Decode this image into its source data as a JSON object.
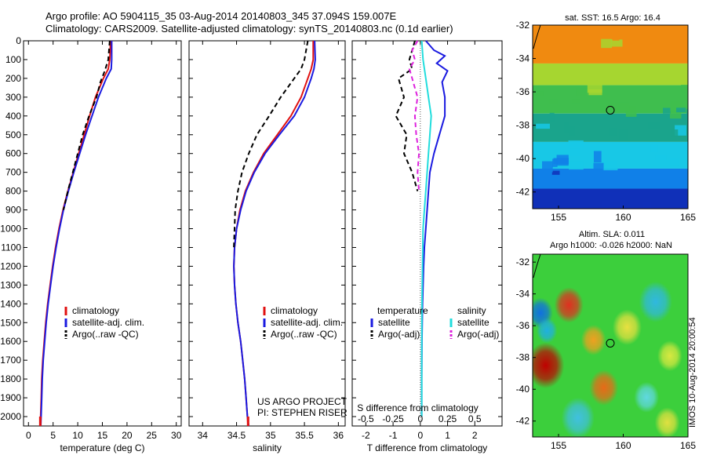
{
  "header": {
    "line1": "Argo profile: AO 5904115_35 03-Aug-2014 20140803_345 37.094S 159.007E",
    "line2": "Climatology: CARS2009. Satellite-adjusted climatology: synTS_20140803.nc (0.1d earlier)"
  },
  "stamp": "IMOS 10-Aug-2014 20:00:54",
  "colors": {
    "climatology": "#e01010",
    "satellite": "#1a1ae0",
    "argo": "#000000",
    "salinity_satellite": "#22dddd",
    "salinity_argo": "#dd22dd"
  },
  "chart_data": [
    {
      "type": "line",
      "id": "temperature",
      "xlabel": "temperature (deg C)",
      "ylabel": "",
      "xlim": [
        -1,
        31
      ],
      "ylim": [
        2050,
        0
      ],
      "xticks": [
        0,
        5,
        10,
        15,
        20,
        25,
        30
      ],
      "yticks": [
        0,
        100,
        200,
        300,
        400,
        500,
        600,
        700,
        800,
        900,
        1000,
        1100,
        1200,
        1300,
        1400,
        1500,
        1600,
        1700,
        1800,
        1900,
        2000
      ],
      "legend": {
        "placement": "lower-middle",
        "entries": [
          "climatology",
          "satellite-adj. clim.",
          "Argo(..raw -QC)"
        ]
      },
      "series": [
        {
          "name": "climatology",
          "style": "solid",
          "color_key": "climatology",
          "x": [
            16.6,
            16.6,
            16.5,
            16.2,
            15.2,
            13.6,
            12.4,
            11.3,
            10.2,
            9.1,
            8.0,
            7.0,
            6.2,
            5.5,
            4.9,
            4.4,
            3.9,
            3.5,
            3.2,
            2.9,
            2.7,
            2.6,
            2.4
          ],
          "y": [
            0,
            50,
            100,
            150,
            200,
            300,
            400,
            500,
            600,
            700,
            800,
            900,
            1000,
            1100,
            1200,
            1300,
            1400,
            1500,
            1600,
            1700,
            1800,
            1900,
            2050
          ]
        },
        {
          "name": "satellite-adj. clim.",
          "style": "solid",
          "color_key": "satellite",
          "x": [
            16.9,
            16.9,
            16.9,
            16.8,
            15.8,
            14.2,
            12.9,
            11.6,
            10.4,
            9.2,
            8.1,
            7.1,
            6.3,
            5.6,
            5.0,
            4.5,
            4.0,
            3.6,
            3.3,
            3.0,
            2.8,
            2.7,
            2.5
          ],
          "y": [
            0,
            50,
            100,
            150,
            200,
            300,
            400,
            500,
            600,
            700,
            800,
            900,
            1000,
            1100,
            1200,
            1300,
            1400,
            1500,
            1600,
            1700,
            1800,
            1900,
            2050
          ]
        },
        {
          "name": "Argo(..raw -QC)",
          "style": "dash",
          "color_key": "argo",
          "x": [
            16.5,
            16.2,
            15.5,
            14.6,
            13.8,
            12.3,
            11.0,
            10.0,
            9.0,
            8.0,
            7.1
          ],
          "y": [
            0,
            100,
            160,
            220,
            300,
            400,
            500,
            600,
            700,
            800,
            900
          ]
        }
      ]
    },
    {
      "type": "line",
      "id": "salinity",
      "xlabel": "salinity",
      "ylabel": "",
      "xlim": [
        33.8,
        36.1
      ],
      "ylim": [
        2050,
        0
      ],
      "xticks": [
        34,
        34.5,
        35,
        35.5,
        36
      ],
      "legend": {
        "placement": "lower-middle",
        "entries": [
          "climatology",
          "satellite-adj. clim.",
          "Argo(..raw -QC)"
        ]
      },
      "annotation": [
        "US ARGO PROJECT",
        "PI: STEPHEN RISER"
      ],
      "series": [
        {
          "name": "climatology",
          "style": "solid",
          "color_key": "climatology",
          "x": [
            35.63,
            35.63,
            35.6,
            35.55,
            35.45,
            35.3,
            35.1,
            34.9,
            34.75,
            34.63,
            34.55,
            34.5,
            34.47,
            34.46,
            34.47,
            34.49,
            34.52,
            34.56,
            34.59,
            34.62,
            34.64,
            34.66,
            34.67
          ],
          "y": [
            0,
            100,
            150,
            200,
            300,
            400,
            500,
            600,
            700,
            800,
            900,
            1000,
            1100,
            1200,
            1300,
            1400,
            1500,
            1600,
            1700,
            1800,
            1900,
            2000,
            2050
          ]
        },
        {
          "name": "satellite-adj. clim.",
          "style": "solid",
          "color_key": "satellite",
          "x": [
            35.65,
            35.66,
            35.64,
            35.6,
            35.5,
            35.35,
            35.13,
            34.92,
            34.76,
            34.64,
            34.56,
            34.5,
            34.47,
            34.46,
            34.47,
            34.49,
            34.52,
            34.56,
            34.59,
            34.62,
            34.64,
            34.66,
            34.68
          ],
          "y": [
            0,
            100,
            150,
            200,
            300,
            400,
            500,
            600,
            700,
            800,
            900,
            1000,
            1100,
            1200,
            1300,
            1400,
            1500,
            1600,
            1700,
            1800,
            1900,
            2000,
            2050
          ]
        },
        {
          "name": "Argo(..raw -QC)",
          "style": "dash",
          "color_key": "argo",
          "x": [
            35.55,
            35.5,
            35.45,
            35.35,
            35.25,
            35.15,
            34.98,
            34.8,
            34.68,
            34.58,
            34.52,
            34.48,
            34.47,
            34.46
          ],
          "y": [
            0,
            100,
            150,
            200,
            250,
            300,
            400,
            500,
            600,
            700,
            800,
            900,
            1000,
            1100
          ]
        }
      ]
    },
    {
      "type": "line",
      "id": "difference",
      "xlabel": "T difference from climatology",
      "xlabel2": "S difference from climatology",
      "ylabel": "",
      "xlim": [
        -2.5,
        3
      ],
      "ylim": [
        2050,
        0
      ],
      "xticks": [
        -2,
        -1,
        0,
        1,
        2
      ],
      "xticks2_labels": [
        "-0.5",
        "-0.25",
        "0",
        "0.25",
        "0.5"
      ],
      "xticks2_pos": [
        -2,
        -1,
        0,
        1,
        2
      ],
      "legend": {
        "placement": "lower-middle",
        "temperature_title": "temperature",
        "temperature_entries": [
          "satellite",
          "Argo(-adj)"
        ],
        "salinity_title": "salinity",
        "salinity_entries": [
          "satellite",
          "Argo(-adj)"
        ]
      },
      "series": [
        {
          "name": "satellite",
          "group": "temperature",
          "style": "solid",
          "color_key": "satellite",
          "x": [
            0.2,
            0.5,
            0.9,
            0.6,
            1.0,
            0.8,
            0.9,
            0.9,
            0.7,
            0.5,
            0.35,
            0.3,
            0.25,
            0.2,
            0.15,
            0.12,
            0.1,
            0.08,
            0.06,
            0.05,
            0.05
          ],
          "y": [
            0,
            50,
            80,
            120,
            160,
            220,
            300,
            400,
            500,
            600,
            700,
            800,
            900,
            1000,
            1100,
            1200,
            1300,
            1400,
            1600,
            1800,
            2000
          ]
        },
        {
          "name": "Argo(-adj)",
          "group": "temperature",
          "style": "dash",
          "color_key": "argo",
          "x": [
            -0.2,
            -0.4,
            -0.3,
            -0.8,
            -0.6,
            -0.9,
            -0.5,
            -0.6,
            -0.3,
            -0.1
          ],
          "y": [
            0,
            100,
            150,
            200,
            300,
            400,
            500,
            600,
            700,
            800
          ]
        },
        {
          "name": "satellite",
          "group": "salinity",
          "style": "solid",
          "color_key": "salinity_satellite",
          "x": [
            0.05,
            0.1,
            0.2,
            0.3,
            0.4,
            0.35,
            0.3,
            0.25,
            0.2,
            0.15,
            0.1,
            0.08,
            0.06,
            0.05,
            0.05
          ],
          "y": [
            0,
            100,
            200,
            300,
            400,
            500,
            600,
            700,
            800,
            900,
            1000,
            1200,
            1400,
            1700,
            2000
          ]
        },
        {
          "name": "Argo(-adj)",
          "group": "salinity",
          "style": "dash",
          "color_key": "salinity_argo",
          "x": [
            -0.1,
            -0.3,
            -0.2,
            -0.4,
            -0.3,
            -0.1,
            -0.2,
            -0.15,
            -0.05,
            -0.1,
            -0.05
          ],
          "y": [
            0,
            50,
            100,
            150,
            200,
            300,
            400,
            500,
            600,
            700,
            800
          ]
        }
      ]
    },
    {
      "type": "heatmap",
      "id": "sst_map",
      "title": "sat. SST: 16.5 Argo: 16.4",
      "xlim": [
        153,
        165
      ],
      "ylim": [
        -43,
        -32
      ],
      "xticks": [
        155,
        160,
        165
      ],
      "yticks": [
        -32,
        -34,
        -36,
        -38,
        -40,
        -42
      ],
      "marker": {
        "lon": 159.0,
        "lat": -37.1
      },
      "bands": [
        {
          "lat_top": -32,
          "lat_bottom": -34.3,
          "color": "#f08a10"
        },
        {
          "lat_top": -34.3,
          "lat_bottom": -35.6,
          "color": "#a6d630"
        },
        {
          "lat_top": -35.6,
          "lat_bottom": -37.3,
          "color": "#3fbe4e"
        },
        {
          "lat_top": -37.3,
          "lat_bottom": -39.0,
          "color": "#1aa48c"
        },
        {
          "lat_top": -39.0,
          "lat_bottom": -40.6,
          "color": "#18c8e6"
        },
        {
          "lat_top": -40.6,
          "lat_bottom": -41.8,
          "color": "#1080e8"
        },
        {
          "lat_top": -41.8,
          "lat_bottom": -43,
          "color": "#1030b8"
        }
      ]
    },
    {
      "type": "heatmap",
      "id": "sla_map",
      "title": "Altim. SLA: 0.011",
      "subtitle": "Argo h1000: -0.026 h2000: NaN",
      "xlim": [
        153,
        165
      ],
      "ylim": [
        -43,
        -31.5
      ],
      "xticks": [
        155,
        160,
        165
      ],
      "yticks": [
        -32,
        -34,
        -36,
        -38,
        -40,
        -42
      ],
      "marker": {
        "lon": 159.0,
        "lat": -37.1
      },
      "background_color": "#3ccf3c",
      "blobs": [
        {
          "lon": 154.0,
          "lat": -38.5,
          "r": 0.9,
          "color": "#c00000"
        },
        {
          "lon": 155.8,
          "lat": -34.7,
          "r": 0.7,
          "color": "#e03020"
        },
        {
          "lon": 153.6,
          "lat": -35.2,
          "r": 0.6,
          "color": "#1070e0"
        },
        {
          "lon": 154.1,
          "lat": -36.3,
          "r": 0.5,
          "color": "#20b0e0"
        },
        {
          "lon": 157.7,
          "lat": -36.9,
          "r": 0.6,
          "color": "#f0a020"
        },
        {
          "lon": 160.3,
          "lat": -36.1,
          "r": 0.7,
          "color": "#e8e040"
        },
        {
          "lon": 158.5,
          "lat": -39.9,
          "r": 0.7,
          "color": "#e86a18"
        },
        {
          "lon": 156.5,
          "lat": -41.8,
          "r": 0.8,
          "color": "#40c0e0"
        },
        {
          "lon": 162.5,
          "lat": -34.5,
          "r": 0.8,
          "color": "#30b8e0"
        },
        {
          "lon": 163.6,
          "lat": -37.9,
          "r": 0.6,
          "color": "#d8e840"
        },
        {
          "lon": 161.8,
          "lat": -40.5,
          "r": 0.6,
          "color": "#60d8e0"
        },
        {
          "lon": 163.4,
          "lat": -42.1,
          "r": 0.6,
          "color": "#e0e040"
        }
      ]
    }
  ]
}
